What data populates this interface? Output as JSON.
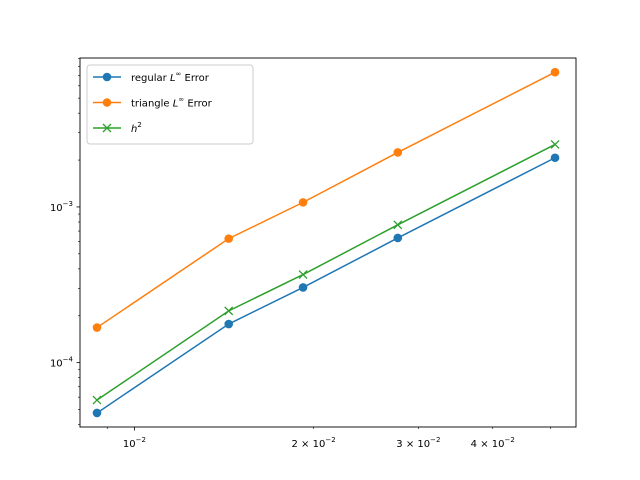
{
  "chart_data": {
    "type": "line",
    "title": "",
    "xlabel": "",
    "ylabel": "",
    "xscale": "log",
    "yscale": "log",
    "xlim": [
      0.0081,
      0.0552
    ],
    "ylim": [
      3.86e-05,
      0.00905
    ],
    "grid": false,
    "legend_position": "top-left",
    "x": [
      0.00865,
      0.0144,
      0.0192,
      0.0277,
      0.0509
    ],
    "series": [
      {
        "name": "regular L∞ Error",
        "legend": {
          "prefix": "regular ",
          "math": "L",
          "sup": "∞",
          "suffix": " Error"
        },
        "color": "#1f77b4",
        "marker": "circle",
        "values": [
          4.75e-05,
          0.000177,
          0.000304,
          0.000632,
          0.00207
        ]
      },
      {
        "name": "triangle L∞ Error",
        "legend": {
          "prefix": "triangle ",
          "math": "L",
          "sup": "∞",
          "suffix": " Error"
        },
        "color": "#ff7f0e",
        "marker": "circle",
        "values": [
          0.000168,
          0.000626,
          0.00107,
          0.00224,
          0.00734
        ]
      },
      {
        "name": "h²",
        "legend": {
          "prefix": "",
          "math": "h",
          "sup": "2",
          "suffix": ""
        },
        "color": "#2ca02c",
        "marker": "x",
        "values": [
          5.75e-05,
          0.000215,
          0.000368,
          0.000768,
          0.00252
        ]
      }
    ],
    "x_ticks": [
      {
        "value": 0.01,
        "base": "10",
        "exp": "−2",
        "mant": ""
      },
      {
        "value": 0.02,
        "base": "10",
        "exp": "−2",
        "mant": "2"
      },
      {
        "value": 0.03,
        "base": "10",
        "exp": "−2",
        "mant": "3"
      },
      {
        "value": 0.04,
        "base": "10",
        "exp": "−2",
        "mant": "4"
      }
    ],
    "y_ticks": [
      {
        "value": 0.001,
        "base": "10",
        "exp": "−3"
      },
      {
        "value": 0.0001,
        "base": "10",
        "exp": "−4"
      }
    ]
  }
}
